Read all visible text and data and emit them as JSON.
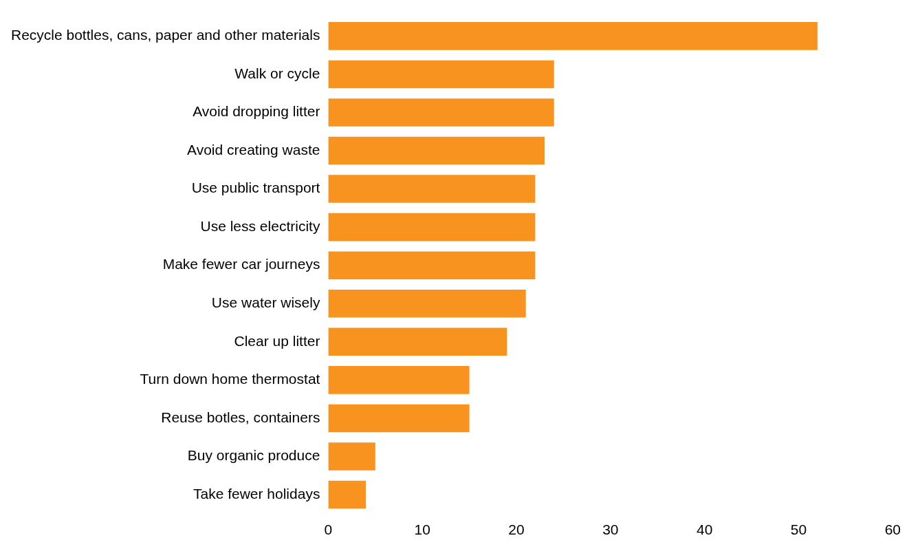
{
  "chart_data": {
    "type": "bar",
    "orientation": "horizontal",
    "categories": [
      "Recycle bottles, cans, paper and other materials",
      "Walk or cycle",
      "Avoid dropping litter",
      "Avoid creating waste",
      "Use public transport",
      "Use less electricity",
      "Make fewer car journeys",
      "Use water wisely",
      "Clear up litter",
      "Turn down home thermostat",
      "Reuse botles, containers",
      "Buy organic produce",
      "Take fewer holidays"
    ],
    "values": [
      52,
      24,
      24,
      23,
      22,
      22,
      22,
      21,
      19,
      15,
      15,
      5,
      4
    ],
    "color": "#f7931e",
    "xlim": [
      0,
      60
    ],
    "xticks": [
      0,
      10,
      20,
      30,
      40,
      50,
      60
    ]
  }
}
